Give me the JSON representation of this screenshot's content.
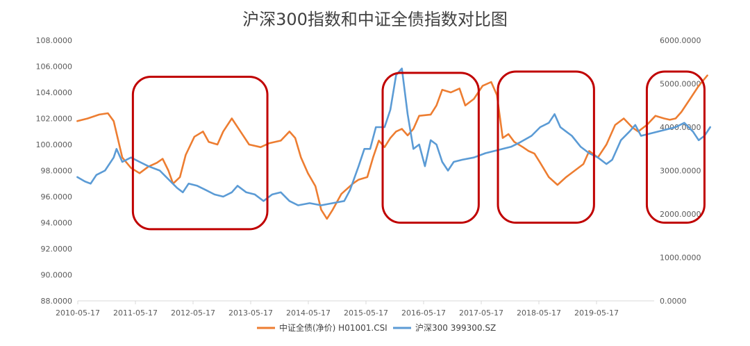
{
  "chart_data": {
    "type": "line",
    "title": "沪深300指数和中证全债指数对比图",
    "x_tick_labels": [
      "2010-05-17",
      "2011-05-17",
      "2012-05-17",
      "2013-05-17",
      "2014-05-17",
      "2015-05-17",
      "2016-05-17",
      "2017-05-17",
      "2018-05-17",
      "2019-05-17"
    ],
    "x_range": [
      "2010-05-17",
      "2020-05-17"
    ],
    "y_left": {
      "ylim": [
        88,
        108
      ],
      "tick_labels": [
        "88.0000",
        "90.0000",
        "92.0000",
        "94.0000",
        "96.0000",
        "98.0000",
        "100.0000",
        "102.0000",
        "104.0000",
        "106.0000",
        "108.0000"
      ]
    },
    "y_right": {
      "ylim": [
        0,
        6000
      ],
      "tick_labels": [
        "0.0000",
        "1000.0000",
        "2000.0000",
        "3000.0000",
        "4000.0000",
        "5000.0000",
        "6000.0000"
      ]
    },
    "grid": false,
    "legend_position": "bottom",
    "series": [
      {
        "name": "中证全债(净价) H01001.CSI",
        "axis": "left",
        "color": "#ED7D31",
        "points": [
          [
            2010.37,
            101.8
          ],
          [
            2010.55,
            102.0
          ],
          [
            2010.75,
            102.3
          ],
          [
            2010.9,
            102.4
          ],
          [
            2011.0,
            101.8
          ],
          [
            2011.15,
            99.0
          ],
          [
            2011.3,
            98.2
          ],
          [
            2011.45,
            97.8
          ],
          [
            2011.6,
            98.3
          ],
          [
            2011.75,
            98.6
          ],
          [
            2011.85,
            98.9
          ],
          [
            2011.95,
            98.0
          ],
          [
            2012.03,
            97.0
          ],
          [
            2012.15,
            97.5
          ],
          [
            2012.25,
            99.2
          ],
          [
            2012.4,
            100.6
          ],
          [
            2012.55,
            101.0
          ],
          [
            2012.65,
            100.2
          ],
          [
            2012.8,
            100.0
          ],
          [
            2012.9,
            101.0
          ],
          [
            2013.05,
            102.0
          ],
          [
            2013.2,
            101.0
          ],
          [
            2013.35,
            100.0
          ],
          [
            2013.55,
            99.8
          ],
          [
            2013.7,
            100.1
          ],
          [
            2013.9,
            100.3
          ],
          [
            2014.05,
            101.0
          ],
          [
            2014.15,
            100.5
          ],
          [
            2014.25,
            99.0
          ],
          [
            2014.37,
            97.8
          ],
          [
            2014.5,
            96.8
          ],
          [
            2014.6,
            95.0
          ],
          [
            2014.7,
            94.3
          ],
          [
            2014.8,
            95.0
          ],
          [
            2014.95,
            96.2
          ],
          [
            2015.15,
            97.0
          ],
          [
            2015.25,
            97.3
          ],
          [
            2015.4,
            97.5
          ],
          [
            2015.5,
            99.0
          ],
          [
            2015.6,
            100.3
          ],
          [
            2015.7,
            99.8
          ],
          [
            2015.8,
            100.5
          ],
          [
            2015.9,
            101.0
          ],
          [
            2016.0,
            101.2
          ],
          [
            2016.1,
            100.7
          ],
          [
            2016.2,
            101.2
          ],
          [
            2016.3,
            102.2
          ],
          [
            2016.5,
            102.3
          ],
          [
            2016.6,
            103.0
          ],
          [
            2016.7,
            104.2
          ],
          [
            2016.85,
            104.0
          ],
          [
            2017.0,
            104.3
          ],
          [
            2017.1,
            103.0
          ],
          [
            2017.25,
            103.5
          ],
          [
            2017.4,
            104.5
          ],
          [
            2017.55,
            104.8
          ],
          [
            2017.65,
            103.8
          ],
          [
            2017.75,
            100.5
          ],
          [
            2017.85,
            100.8
          ],
          [
            2017.95,
            100.2
          ],
          [
            2018.1,
            99.8
          ],
          [
            2018.2,
            99.5
          ],
          [
            2018.3,
            99.3
          ],
          [
            2018.4,
            98.6
          ],
          [
            2018.55,
            97.5
          ],
          [
            2018.7,
            96.9
          ],
          [
            2018.85,
            97.5
          ],
          [
            2019.0,
            98.0
          ],
          [
            2019.15,
            98.5
          ],
          [
            2019.25,
            99.5
          ],
          [
            2019.4,
            99.0
          ],
          [
            2019.55,
            100.0
          ],
          [
            2019.7,
            101.5
          ],
          [
            2019.85,
            102.0
          ],
          [
            2020.0,
            101.3
          ],
          [
            2020.1,
            101.0
          ],
          [
            2020.25,
            101.5
          ],
          [
            2020.4,
            102.2
          ],
          [
            2020.55,
            102.0
          ],
          [
            2020.65,
            101.9
          ],
          [
            2020.75,
            102.0
          ],
          [
            2020.85,
            102.5
          ],
          [
            2021.0,
            103.5
          ],
          [
            2021.15,
            104.5
          ],
          [
            2021.3,
            105.3
          ]
        ]
      },
      {
        "name": "沪深300 399300.SZ",
        "axis": "right",
        "color": "#5B9BD5",
        "points": [
          [
            2010.37,
            2850
          ],
          [
            2010.5,
            2750
          ],
          [
            2010.6,
            2700
          ],
          [
            2010.7,
            2900
          ],
          [
            2010.85,
            3000
          ],
          [
            2011.0,
            3300
          ],
          [
            2011.05,
            3500
          ],
          [
            2011.15,
            3200
          ],
          [
            2011.3,
            3300
          ],
          [
            2011.45,
            3200
          ],
          [
            2011.6,
            3100
          ],
          [
            2011.8,
            3000
          ],
          [
            2011.95,
            2800
          ],
          [
            2012.1,
            2600
          ],
          [
            2012.2,
            2500
          ],
          [
            2012.3,
            2700
          ],
          [
            2012.45,
            2650
          ],
          [
            2012.6,
            2550
          ],
          [
            2012.75,
            2450
          ],
          [
            2012.9,
            2400
          ],
          [
            2013.05,
            2500
          ],
          [
            2013.15,
            2650
          ],
          [
            2013.3,
            2500
          ],
          [
            2013.45,
            2450
          ],
          [
            2013.6,
            2300
          ],
          [
            2013.75,
            2450
          ],
          [
            2013.9,
            2500
          ],
          [
            2014.05,
            2300
          ],
          [
            2014.2,
            2200
          ],
          [
            2014.4,
            2250
          ],
          [
            2014.6,
            2200
          ],
          [
            2014.8,
            2250
          ],
          [
            2015.0,
            2300
          ],
          [
            2015.1,
            2550
          ],
          [
            2015.25,
            3100
          ],
          [
            2015.35,
            3500
          ],
          [
            2015.45,
            3500
          ],
          [
            2015.55,
            4000
          ],
          [
            2015.7,
            4000
          ],
          [
            2015.8,
            4400
          ],
          [
            2015.9,
            5200
          ],
          [
            2016.0,
            5350
          ],
          [
            2016.1,
            4300
          ],
          [
            2016.2,
            3500
          ],
          [
            2016.3,
            3600
          ],
          [
            2016.4,
            3100
          ],
          [
            2016.5,
            3700
          ],
          [
            2016.6,
            3600
          ],
          [
            2016.7,
            3200
          ],
          [
            2016.8,
            3000
          ],
          [
            2016.9,
            3200
          ],
          [
            2017.05,
            3250
          ],
          [
            2017.25,
            3300
          ],
          [
            2017.45,
            3400
          ],
          [
            2017.6,
            3450
          ],
          [
            2017.75,
            3500
          ],
          [
            2017.9,
            3550
          ],
          [
            2018.05,
            3650
          ],
          [
            2018.25,
            3800
          ],
          [
            2018.4,
            4000
          ],
          [
            2018.55,
            4100
          ],
          [
            2018.65,
            4300
          ],
          [
            2018.75,
            4000
          ],
          [
            2018.85,
            3900
          ],
          [
            2018.95,
            3800
          ],
          [
            2019.1,
            3550
          ],
          [
            2019.25,
            3400
          ],
          [
            2019.4,
            3300
          ],
          [
            2019.55,
            3150
          ],
          [
            2019.65,
            3250
          ],
          [
            2019.8,
            3700
          ],
          [
            2019.95,
            3900
          ],
          [
            2020.05,
            4050
          ],
          [
            2020.15,
            3800
          ],
          [
            2020.3,
            3850
          ],
          [
            2020.45,
            3900
          ],
          [
            2020.6,
            3950
          ],
          [
            2020.75,
            4000
          ],
          [
            2020.9,
            4100
          ],
          [
            2021.05,
            3900
          ],
          [
            2021.15,
            3700
          ],
          [
            2021.25,
            3800
          ],
          [
            2021.35,
            4000
          ]
        ]
      }
    ],
    "annotations": [
      {
        "shape": "rounded-rect",
        "color": "#C00000",
        "from": "2011-05",
        "to": "2013-09",
        "ymax_left": 105.2,
        "ymin_left": 93.5
      },
      {
        "shape": "rounded-rect",
        "color": "#C00000",
        "from": "2015-09",
        "to": "2017-05",
        "ymax_left": 105.5,
        "ymin_left": 94.0
      },
      {
        "shape": "rounded-rect",
        "color": "#C00000",
        "from": "2017-09",
        "to": "2019-05",
        "ymax_left": 105.6,
        "ymin_left": 94.0
      },
      {
        "shape": "rounded-rect",
        "color": "#C00000",
        "from": "2020-04",
        "to": "2021-04",
        "ymax_left": 105.6,
        "ymin_left": 94.0
      }
    ]
  }
}
